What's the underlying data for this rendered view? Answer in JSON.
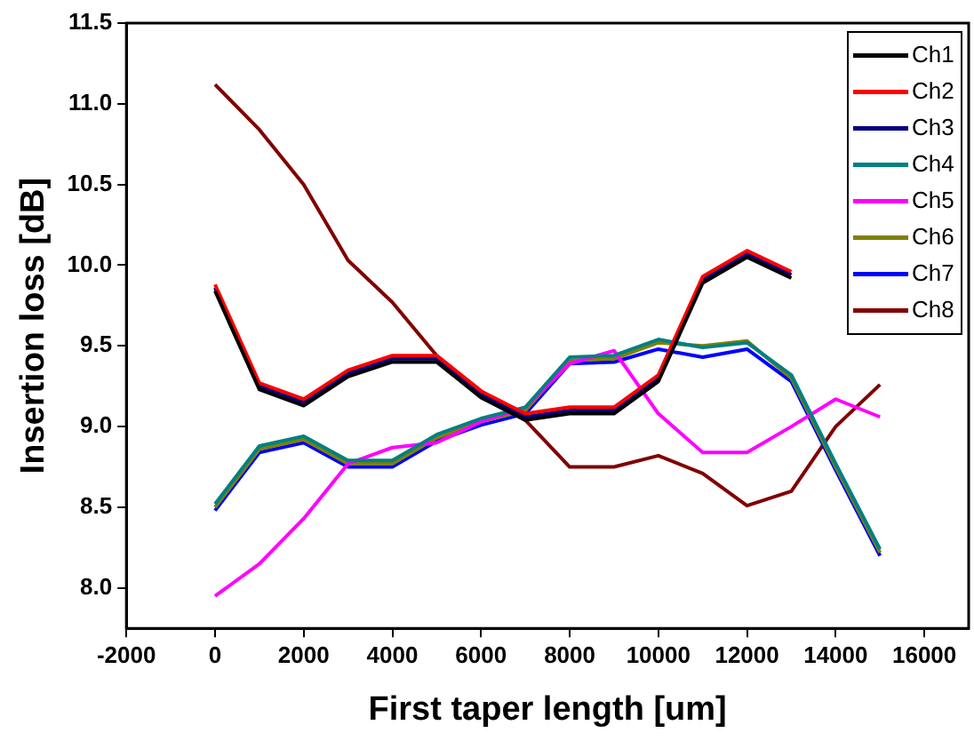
{
  "chart_data": {
    "type": "line",
    "xlabel": "First taper length [um]",
    "ylabel": "Insertion loss [dB]",
    "x": [
      0,
      1000,
      2000,
      3000,
      4000,
      5000,
      6000,
      7000,
      8000,
      9000,
      10000,
      11000,
      12000,
      13000,
      14000,
      15000
    ],
    "xlim": [
      -2000,
      17000
    ],
    "xticks": [
      -2000,
      0,
      2000,
      4000,
      6000,
      8000,
      10000,
      12000,
      14000,
      16000
    ],
    "ylim": [
      7.75,
      11.5
    ],
    "yticks": [
      {
        "value": 8,
        "label": "8.0"
      },
      8.5,
      {
        "value": 9,
        "label": "9.0"
      },
      9.5,
      {
        "value": 10,
        "label": "10.0"
      },
      10.5,
      {
        "value": 11,
        "label": "11.0"
      },
      11.5
    ],
    "series": [
      {
        "name": "Ch1",
        "color": "#000000",
        "values": [
          9.84,
          9.23,
          9.13,
          9.31,
          9.4,
          9.4,
          9.18,
          9.04,
          9.08,
          9.08,
          9.28,
          9.89,
          10.05,
          9.92,
          null,
          null
        ]
      },
      {
        "name": "Ch2",
        "color": "#ff0000",
        "values": [
          9.88,
          9.27,
          9.17,
          9.35,
          9.44,
          9.44,
          9.22,
          9.08,
          9.12,
          9.12,
          9.32,
          9.93,
          10.09,
          9.96,
          null,
          null
        ]
      },
      {
        "name": "Ch3",
        "color": "#000080",
        "values": [
          9.86,
          9.25,
          9.15,
          9.33,
          9.42,
          9.42,
          9.2,
          9.06,
          9.1,
          9.1,
          9.3,
          9.91,
          10.07,
          9.94,
          null,
          null
        ]
      },
      {
        "name": "Ch4",
        "color": "#008080",
        "values": [
          8.52,
          8.88,
          8.94,
          8.79,
          8.79,
          8.95,
          9.05,
          9.12,
          9.43,
          9.44,
          9.54,
          9.49,
          9.52,
          9.32,
          8.77,
          8.24
        ]
      },
      {
        "name": "Ch5",
        "color": "#ff00ff",
        "values": [
          7.95,
          8.15,
          8.43,
          8.77,
          8.87,
          8.9,
          9.03,
          9.12,
          9.39,
          9.47,
          9.08,
          8.84,
          8.84,
          9.0,
          9.17,
          9.06
        ]
      },
      {
        "name": "Ch6",
        "color": "#808000",
        "values": [
          8.5,
          8.86,
          8.92,
          8.77,
          8.77,
          8.93,
          9.03,
          9.1,
          9.41,
          9.42,
          9.52,
          9.5,
          9.53,
          9.3,
          8.75,
          8.22
        ]
      },
      {
        "name": "Ch7",
        "color": "#0000ff",
        "values": [
          8.48,
          8.84,
          8.9,
          8.75,
          8.75,
          8.91,
          9.01,
          9.08,
          9.39,
          9.4,
          9.48,
          9.43,
          9.48,
          9.28,
          8.73,
          8.2
        ]
      },
      {
        "name": "Ch8",
        "color": "#800000",
        "values": [
          11.12,
          10.84,
          10.5,
          10.03,
          9.77,
          9.44,
          9.22,
          9.04,
          8.75,
          8.75,
          8.82,
          8.71,
          8.51,
          8.6,
          9.0,
          9.26
        ]
      }
    ],
    "legend": "top right",
    "marker": "none",
    "line_style": "solid",
    "grid": false
  }
}
